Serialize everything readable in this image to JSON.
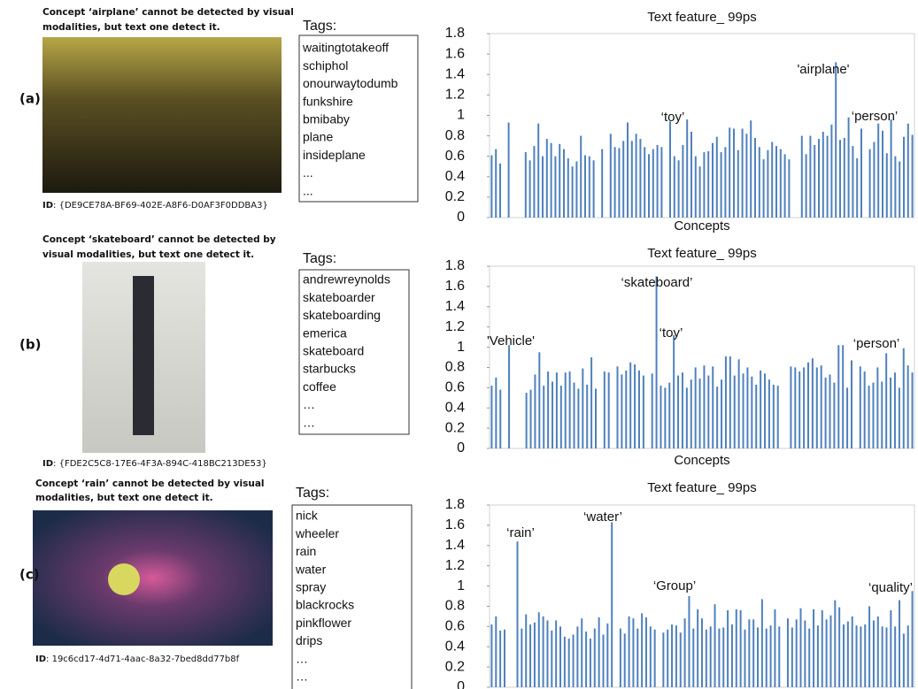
{
  "panels": [
    {
      "label": "(a)",
      "caption": [
        "Concept ‘airplane’ cannot be detected by visual",
        "modalities, but text one detect it."
      ],
      "id_label": "ID",
      "id": ": {DE9CE78A-BF69-402E-A8F6-D0AF3F0DDBA3}",
      "tags_title": "Tags:",
      "tags": [
        "waitingtotakeoff",
        "schiphol",
        "onourwaytodumb",
        "funkshire",
        "bmibaby",
        "plane",
        "insideplane",
        "...",
        "..."
      ]
    },
    {
      "label": "(b)",
      "caption": [
        "Concept ‘skateboard’ cannot be detected by",
        "visual modalities, but text one detect it."
      ],
      "id_label": "ID",
      "id": ": {FDE2C5C8-17E6-4F3A-894C-418BC213DE53}",
      "tags_title": "Tags:",
      "tags": [
        "andrewreynolds",
        "skateboarder",
        "skateboarding",
        "emerica",
        "skateboard",
        "starbucks",
        "coffee",
        "…",
        "…"
      ]
    },
    {
      "label": "(c)",
      "caption": [
        "Concept ‘rain’ cannot be detected by visual",
        "modalities, but text one detect it."
      ],
      "id_label": "ID",
      "id": ": 19c6cd17-4d71-4aac-8a32-7bed8dd77b8f",
      "tags_title": "Tags:",
      "tags": [
        "nick",
        "wheeler",
        "rain",
        "water",
        "spray",
        "blackrocks",
        "pinkflower",
        "drips",
        "…",
        "…"
      ]
    }
  ],
  "chart_data": [
    {
      "type": "bar",
      "title": "Text feature_ 99ps",
      "x_label": "Concepts",
      "color": "#4f81bd",
      "ylim": [
        0,
        1.8
      ],
      "yticks": [
        0,
        0.2,
        0.4,
        0.6,
        0.8,
        1,
        1.2,
        1.4,
        1.6,
        1.8
      ],
      "annotations": [
        "‘toy’",
        "'airplane'",
        "‘person’"
      ],
      "values": [
        0.61,
        0.67,
        0.53,
        0,
        0.93,
        0,
        0,
        0,
        0.64,
        0.56,
        0.7,
        0.92,
        0.6,
        0.77,
        0.73,
        0.6,
        0.72,
        0.67,
        0.58,
        0.5,
        0.55,
        0.8,
        0.61,
        0.6,
        0.56,
        0,
        0.67,
        0,
        0.82,
        0.69,
        0.68,
        0.75,
        0.93,
        0.75,
        0.82,
        0.77,
        0.69,
        0.62,
        0.67,
        0.71,
        0.69,
        0,
        0.94,
        0.6,
        0.56,
        0.71,
        0.96,
        0.84,
        0.6,
        0.5,
        0.64,
        0.65,
        0.73,
        0.79,
        0.64,
        0.69,
        0.88,
        0.87,
        0.66,
        0.87,
        0.82,
        0.95,
        0.78,
        0.69,
        0.57,
        0.66,
        0.74,
        0.7,
        0.67,
        0.62,
        0.57,
        0,
        0,
        0.8,
        0.62,
        0.8,
        0.71,
        0.77,
        0.84,
        0.8,
        0.91,
        1.52,
        0.76,
        0.78,
        0.98,
        0.7,
        0.58,
        0.87,
        0,
        0.67,
        0.74,
        0.92,
        0.85,
        0.63,
        0.96,
        0.6,
        0.55,
        0.79,
        0.92,
        0.81
      ]
    },
    {
      "type": "bar",
      "title": "Text feature_ 99ps",
      "x_label": "Concepts",
      "color": "#4f81bd",
      "ylim": [
        0,
        1.8
      ],
      "yticks": [
        0,
        0.2,
        0.4,
        0.6,
        0.8,
        1,
        1.2,
        1.4,
        1.6,
        1.8
      ],
      "annotations": [
        "'Vehicle'",
        "‘skateboard’",
        "‘toy’",
        "‘person’"
      ],
      "values": [
        0.62,
        0.7,
        0.58,
        0,
        1.02,
        0,
        0,
        0,
        0.55,
        0.58,
        0.73,
        0.95,
        0.62,
        0.76,
        0.66,
        0.75,
        0.62,
        0.75,
        0.76,
        0.65,
        0.59,
        0.79,
        0.63,
        0.9,
        0.59,
        0,
        0.76,
        0.75,
        0,
        0.81,
        0.73,
        0.77,
        0.85,
        0.83,
        0.77,
        0.72,
        0,
        0.74,
        1.7,
        0.62,
        0.6,
        0.65,
        1.12,
        0.72,
        0.75,
        0.6,
        0.68,
        0.8,
        0.69,
        0.82,
        0.72,
        0.81,
        0.61,
        0.68,
        0.91,
        0.91,
        0.72,
        0.88,
        0.74,
        0.8,
        0.71,
        0.63,
        0.77,
        0.74,
        0.68,
        0.63,
        0.62,
        0,
        0,
        0.81,
        0.8,
        0.76,
        0.8,
        0.85,
        0.89,
        0.8,
        0.82,
        0.7,
        0.73,
        0.65,
        1.02,
        1.02,
        0.6,
        0.87,
        0,
        0.81,
        0.76,
        0.62,
        0.65,
        0.8,
        0.66,
        0.94,
        0.7,
        0.75,
        0.6,
        0.99,
        0.82,
        0.75
      ]
    },
    {
      "type": "bar",
      "title": "Text feature_ 99ps",
      "color": "#4f81bd",
      "ylim": [
        0,
        1.8
      ],
      "yticks": [
        0,
        0.2,
        0.4,
        0.6,
        0.8,
        1,
        1.2,
        1.4,
        1.6,
        1.8
      ],
      "annotations": [
        "‘rain’",
        "‘water’",
        "‘Group’",
        "‘quality’"
      ],
      "values": [
        0.62,
        0.7,
        0.56,
        0.57,
        0,
        0,
        1.44,
        0.58,
        0.72,
        0.62,
        0.64,
        0.74,
        0.7,
        0.66,
        0.56,
        0.66,
        0.6,
        0.5,
        0.48,
        0.52,
        0.6,
        0.68,
        0.55,
        0.48,
        0.58,
        0.69,
        0.52,
        0.63,
        1.63,
        0,
        0.58,
        0.53,
        0.7,
        0.68,
        0.58,
        0.73,
        0.69,
        0.6,
        0.57,
        0,
        0.54,
        0.57,
        0.62,
        0.61,
        0.54,
        0.68,
        0.9,
        0.58,
        0.77,
        0.68,
        0.57,
        0.6,
        0.82,
        0.58,
        0.59,
        0.76,
        0.62,
        0.77,
        0.76,
        0.57,
        0.67,
        0.67,
        0.59,
        0.87,
        0.58,
        0.61,
        0.77,
        0.6,
        0,
        0.68,
        0.59,
        0.67,
        0.78,
        0.66,
        0.58,
        0.77,
        0.61,
        0.76,
        0.67,
        0.71,
        0.86,
        0.79,
        0.62,
        0.65,
        0.7,
        0.61,
        0.6,
        0.62,
        0.8,
        0.66,
        0.7,
        0.6,
        0.59,
        0.76,
        0.6,
        0.86,
        0.53,
        0.61,
        0.95
      ]
    }
  ]
}
